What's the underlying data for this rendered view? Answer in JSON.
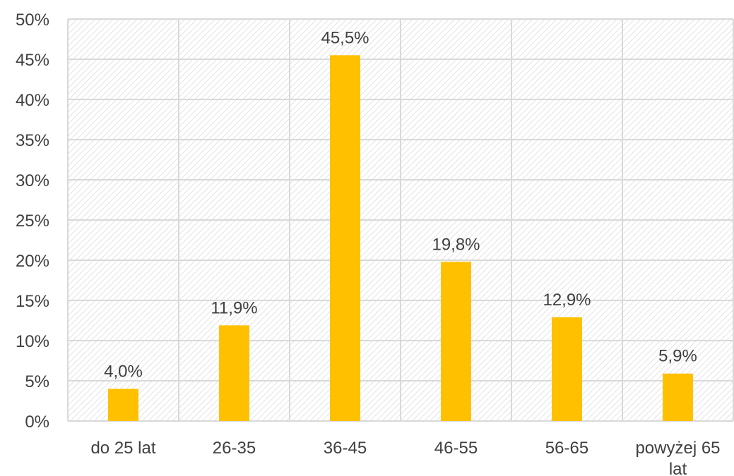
{
  "chart_data": {
    "type": "bar",
    "categories": [
      "do 25 lat",
      "26-35",
      "36-45",
      "46-55",
      "56-65",
      "powyżej 65 lat"
    ],
    "category_lines": [
      [
        "do 25 lat"
      ],
      [
        "26-35"
      ],
      [
        "36-45"
      ],
      [
        "46-55"
      ],
      [
        "56-65"
      ],
      [
        "powyżej 65",
        "lat"
      ]
    ],
    "values": [
      4.0,
      11.9,
      45.5,
      19.8,
      12.9,
      5.9
    ],
    "data_labels": [
      "4,0%",
      "11,9%",
      "45,5%",
      "19,8%",
      "12,9%",
      "5,9%"
    ],
    "yticks": [
      "0%",
      "5%",
      "10%",
      "15%",
      "20%",
      "25%",
      "30%",
      "35%",
      "40%",
      "45%",
      "50%"
    ],
    "ylim": [
      0,
      50
    ],
    "title": "",
    "xlabel": "",
    "ylabel": "",
    "grid": true,
    "legend": "none",
    "colors": {
      "bar": "#FFC000",
      "gridline": "#d9d9d9",
      "plot_hatch": "#e3e3e3",
      "text": "#404040"
    }
  }
}
